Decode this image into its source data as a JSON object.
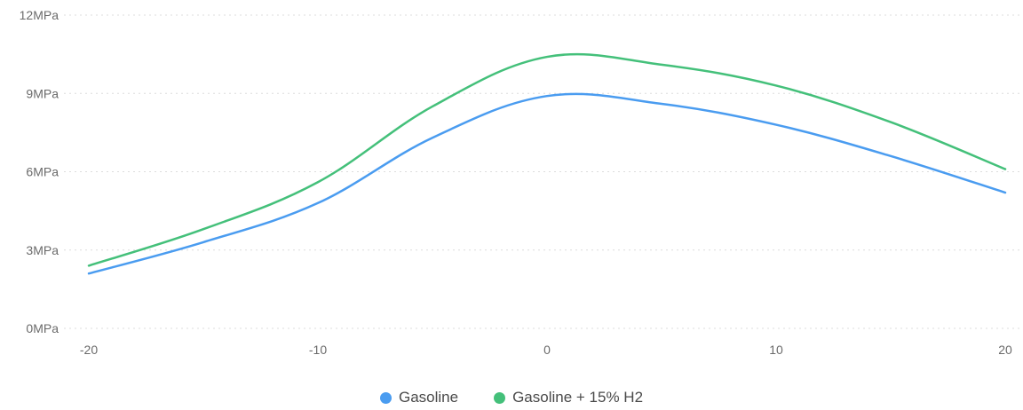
{
  "chart_data": {
    "type": "line",
    "title": "",
    "xlabel": "",
    "ylabel": "",
    "x": [
      -20,
      -15,
      -10,
      -5,
      0,
      5,
      10,
      15,
      20
    ],
    "xticks": [
      "-20",
      "-10",
      "0",
      "10",
      "20"
    ],
    "xtick_values": [
      -20,
      -10,
      0,
      10,
      20
    ],
    "yticks": [
      "0MPa",
      "3MPa",
      "6MPa",
      "9MPa",
      "12MPa"
    ],
    "ytick_values": [
      0,
      3,
      6,
      9,
      12
    ],
    "xlim": [
      -20,
      20
    ],
    "ylim": [
      0,
      12
    ],
    "grid": "horizontal dotted",
    "legend_position": "bottom-center",
    "series": [
      {
        "name": "Gasoline",
        "color": "#4a9cf0",
        "values": [
          2.1,
          3.3,
          4.8,
          7.3,
          8.9,
          8.6,
          7.8,
          6.6,
          5.2
        ]
      },
      {
        "name": "Gasoline + 15% H2",
        "color": "#44c07a",
        "values": [
          2.4,
          3.8,
          5.6,
          8.5,
          10.4,
          10.1,
          9.3,
          7.9,
          6.1
        ]
      }
    ]
  },
  "legend": {
    "items": [
      {
        "label": "Gasoline",
        "color": "#4a9cf0"
      },
      {
        "label": "Gasoline + 15% H2",
        "color": "#44c07a"
      }
    ]
  }
}
